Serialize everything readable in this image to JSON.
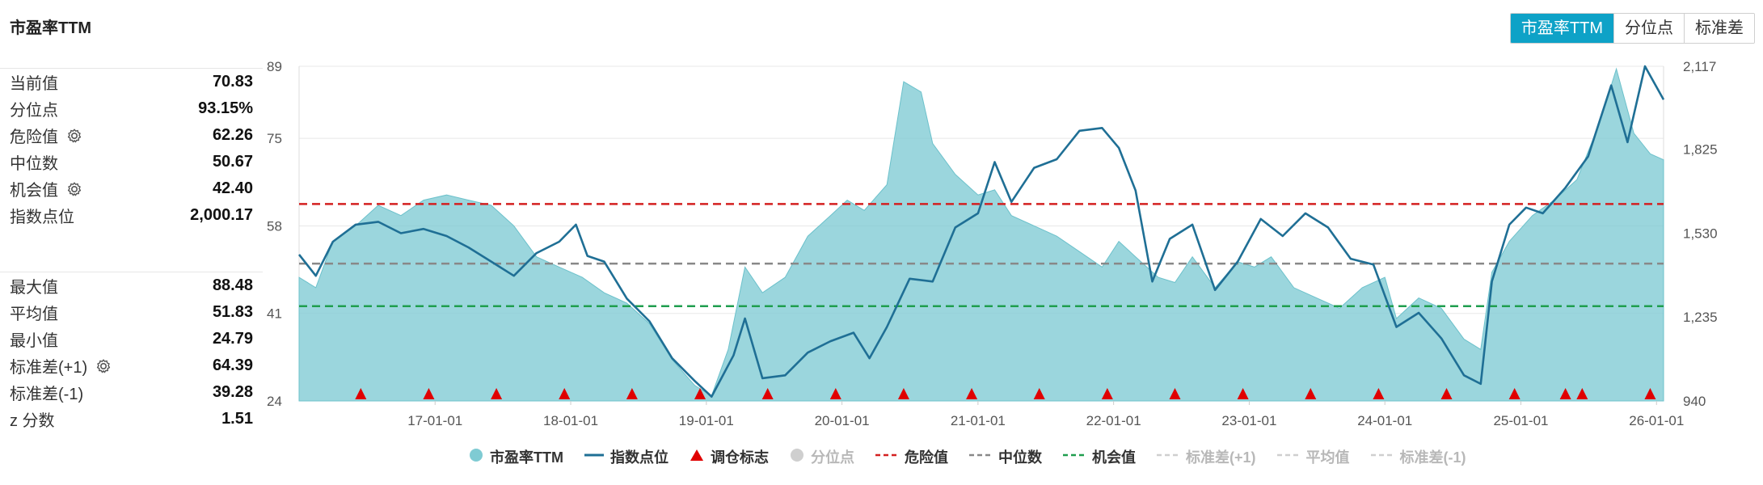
{
  "title": "市盈率TTM",
  "tabs": [
    {
      "label": "市盈率TTM",
      "active": true
    },
    {
      "label": "分位点",
      "active": false
    },
    {
      "label": "标准差",
      "active": false
    }
  ],
  "stats_current": [
    {
      "label": "当前值",
      "value": "70.83",
      "gear": false
    },
    {
      "label": "分位点",
      "value": "93.15%",
      "gear": false
    },
    {
      "label": "危险值",
      "value": "62.26",
      "gear": true
    },
    {
      "label": "中位数",
      "value": "50.67",
      "gear": false
    },
    {
      "label": "机会值",
      "value": "42.40",
      "gear": true
    },
    {
      "label": "指数点位",
      "value": "2,000.17",
      "gear": false
    }
  ],
  "stats_summary": [
    {
      "label": "最大值",
      "value": "88.48",
      "gear": false
    },
    {
      "label": "平均值",
      "value": "51.83",
      "gear": false
    },
    {
      "label": "最小值",
      "value": "24.79",
      "gear": false
    },
    {
      "label": "标准差(+1)",
      "value": "64.39",
      "gear": true
    },
    {
      "label": "标准差(-1)",
      "value": "39.28",
      "gear": false
    },
    {
      "label": "z 分数",
      "value": "1.51",
      "gear": false
    }
  ],
  "legend": [
    {
      "label": "市盈率TTM",
      "kind": "dot",
      "color": "#7fcbd3",
      "muted": false
    },
    {
      "label": "指数点位",
      "kind": "line",
      "color": "#1f6f95",
      "muted": false
    },
    {
      "label": "调仓标志",
      "kind": "triangle",
      "color": "#e00000",
      "muted": false
    },
    {
      "label": "分位点",
      "kind": "dot",
      "color": "#cfcfcf",
      "muted": true
    },
    {
      "label": "危险值",
      "kind": "dash",
      "color": "#d42020",
      "muted": false
    },
    {
      "label": "中位数",
      "kind": "dash",
      "color": "#888888",
      "muted": false
    },
    {
      "label": "机会值",
      "kind": "dash",
      "color": "#1f9e4e",
      "muted": false
    },
    {
      "label": "标准差(+1)",
      "kind": "dash",
      "color": "#cfcfcf",
      "muted": true
    },
    {
      "label": "平均值",
      "kind": "dash",
      "color": "#cfcfcf",
      "muted": true
    },
    {
      "label": "标准差(-1)",
      "kind": "dash",
      "color": "#cfcfcf",
      "muted": true
    }
  ],
  "chart_data": {
    "type": "area",
    "x_range": [
      "2016-01-01",
      "2026-01-20"
    ],
    "x_ticks": [
      {
        "date": "2017-01-01",
        "label": "17-01-01"
      },
      {
        "date": "2018-01-01",
        "label": "18-01-01"
      },
      {
        "date": "2019-01-01",
        "label": "19-01-01"
      },
      {
        "date": "2020-01-01",
        "label": "20-01-01"
      },
      {
        "date": "2021-01-01",
        "label": "21-01-01"
      },
      {
        "date": "2022-01-01",
        "label": "22-01-01"
      },
      {
        "date": "2023-01-01",
        "label": "23-01-01"
      },
      {
        "date": "2024-01-01",
        "label": "24-01-01"
      },
      {
        "date": "2025-01-01",
        "label": "25-01-01"
      },
      {
        "date": "2026-01-01",
        "label": "26-01-01"
      }
    ],
    "y_left": {
      "min": 24,
      "max": 89,
      "ticks": [
        24,
        41,
        58,
        75,
        89
      ],
      "tick_labels": [
        "24",
        "41",
        "58",
        "75",
        "89"
      ]
    },
    "y_right": {
      "min": 940,
      "max": 2117,
      "ticks": [
        940,
        1235,
        1530,
        1825,
        2117
      ],
      "tick_labels": [
        "940",
        "1,235",
        "1,530",
        "1,825",
        "2,117"
      ]
    },
    "reference_lines": [
      {
        "name": "危险值",
        "value": 62.26,
        "color": "#d42020"
      },
      {
        "name": "中位数",
        "value": 50.67,
        "color": "#888888"
      },
      {
        "name": "机会值",
        "value": 42.4,
        "color": "#1f9e4e"
      }
    ],
    "series": [
      {
        "name": "市盈率TTM",
        "axis": "left",
        "style": "area",
        "color": "#7fcbd3",
        "points": [
          [
            "2016-01-01",
            48
          ],
          [
            "2016-02-15",
            46
          ],
          [
            "2016-04-01",
            55
          ],
          [
            "2016-06-01",
            58
          ],
          [
            "2016-08-01",
            62
          ],
          [
            "2016-10-01",
            60
          ],
          [
            "2016-12-01",
            63
          ],
          [
            "2017-02-01",
            64
          ],
          [
            "2017-04-01",
            63
          ],
          [
            "2017-06-01",
            62
          ],
          [
            "2017-08-01",
            58
          ],
          [
            "2017-10-01",
            52
          ],
          [
            "2017-12-01",
            50
          ],
          [
            "2018-02-01",
            48
          ],
          [
            "2018-04-01",
            45
          ],
          [
            "2018-06-01",
            43
          ],
          [
            "2018-08-01",
            39
          ],
          [
            "2018-10-01",
            32
          ],
          [
            "2018-12-01",
            27
          ],
          [
            "2019-01-15",
            25
          ],
          [
            "2019-03-01",
            34
          ],
          [
            "2019-04-15",
            50
          ],
          [
            "2019-06-01",
            45
          ],
          [
            "2019-08-01",
            48
          ],
          [
            "2019-10-01",
            56
          ],
          [
            "2019-12-01",
            60
          ],
          [
            "2020-01-15",
            63
          ],
          [
            "2020-03-01",
            61
          ],
          [
            "2020-05-01",
            66
          ],
          [
            "2020-06-15",
            86
          ],
          [
            "2020-08-01",
            84
          ],
          [
            "2020-09-01",
            74
          ],
          [
            "2020-11-01",
            68
          ],
          [
            "2021-01-01",
            64
          ],
          [
            "2021-02-15",
            65
          ],
          [
            "2021-04-01",
            60
          ],
          [
            "2021-06-01",
            58
          ],
          [
            "2021-08-01",
            56
          ],
          [
            "2021-10-01",
            53
          ],
          [
            "2021-12-01",
            50
          ],
          [
            "2022-01-15",
            55
          ],
          [
            "2022-03-01",
            52
          ],
          [
            "2022-05-01",
            48
          ],
          [
            "2022-06-15",
            47
          ],
          [
            "2022-08-01",
            52
          ],
          [
            "2022-10-01",
            46
          ],
          [
            "2022-12-01",
            51
          ],
          [
            "2023-01-15",
            50
          ],
          [
            "2023-03-01",
            52
          ],
          [
            "2023-05-01",
            46
          ],
          [
            "2023-07-01",
            44
          ],
          [
            "2023-09-01",
            42
          ],
          [
            "2023-11-01",
            46
          ],
          [
            "2024-01-01",
            48
          ],
          [
            "2024-02-01",
            40
          ],
          [
            "2024-04-01",
            44
          ],
          [
            "2024-06-01",
            42
          ],
          [
            "2024-08-01",
            36
          ],
          [
            "2024-09-15",
            34
          ],
          [
            "2024-10-15",
            49
          ],
          [
            "2024-12-01",
            55
          ],
          [
            "2025-02-01",
            60
          ],
          [
            "2025-04-01",
            63
          ],
          [
            "2025-06-01",
            67
          ],
          [
            "2025-08-01",
            78
          ],
          [
            "2025-09-15",
            88.5
          ],
          [
            "2025-11-01",
            76
          ],
          [
            "2025-12-15",
            72
          ],
          [
            "2026-01-20",
            70.83
          ]
        ]
      },
      {
        "name": "指数点位",
        "axis": "right",
        "style": "line",
        "color": "#1f6f95",
        "points": [
          [
            "2016-01-01",
            1455
          ],
          [
            "2016-02-15",
            1380
          ],
          [
            "2016-04-01",
            1500
          ],
          [
            "2016-06-01",
            1560
          ],
          [
            "2016-08-01",
            1570
          ],
          [
            "2016-10-01",
            1530
          ],
          [
            "2016-12-01",
            1545
          ],
          [
            "2017-02-01",
            1520
          ],
          [
            "2017-04-01",
            1480
          ],
          [
            "2017-06-01",
            1430
          ],
          [
            "2017-08-01",
            1380
          ],
          [
            "2017-10-01",
            1460
          ],
          [
            "2017-12-01",
            1500
          ],
          [
            "2018-01-15",
            1560
          ],
          [
            "2018-02-15",
            1450
          ],
          [
            "2018-04-01",
            1430
          ],
          [
            "2018-06-01",
            1300
          ],
          [
            "2018-08-01",
            1220
          ],
          [
            "2018-10-01",
            1090
          ],
          [
            "2018-12-01",
            1010
          ],
          [
            "2019-01-15",
            955
          ],
          [
            "2019-03-15",
            1100
          ],
          [
            "2019-04-15",
            1230
          ],
          [
            "2019-06-01",
            1020
          ],
          [
            "2019-08-01",
            1030
          ],
          [
            "2019-10-01",
            1110
          ],
          [
            "2019-12-01",
            1150
          ],
          [
            "2020-02-01",
            1180
          ],
          [
            "2020-03-15",
            1090
          ],
          [
            "2020-05-01",
            1200
          ],
          [
            "2020-07-01",
            1370
          ],
          [
            "2020-09-01",
            1360
          ],
          [
            "2020-11-01",
            1550
          ],
          [
            "2021-01-01",
            1600
          ],
          [
            "2021-02-15",
            1780
          ],
          [
            "2021-04-01",
            1640
          ],
          [
            "2021-06-01",
            1760
          ],
          [
            "2021-08-01",
            1790
          ],
          [
            "2021-10-01",
            1890
          ],
          [
            "2021-12-01",
            1900
          ],
          [
            "2022-01-15",
            1830
          ],
          [
            "2022-03-01",
            1680
          ],
          [
            "2022-04-15",
            1360
          ],
          [
            "2022-06-01",
            1510
          ],
          [
            "2022-08-01",
            1560
          ],
          [
            "2022-10-01",
            1330
          ],
          [
            "2022-12-01",
            1430
          ],
          [
            "2023-02-01",
            1580
          ],
          [
            "2023-04-01",
            1520
          ],
          [
            "2023-06-01",
            1600
          ],
          [
            "2023-08-01",
            1550
          ],
          [
            "2023-10-01",
            1440
          ],
          [
            "2023-12-01",
            1420
          ],
          [
            "2024-02-01",
            1200
          ],
          [
            "2024-04-01",
            1250
          ],
          [
            "2024-06-01",
            1160
          ],
          [
            "2024-08-01",
            1030
          ],
          [
            "2024-09-15",
            1000
          ],
          [
            "2024-10-15",
            1360
          ],
          [
            "2024-12-01",
            1560
          ],
          [
            "2025-01-15",
            1620
          ],
          [
            "2025-03-01",
            1600
          ],
          [
            "2025-05-01",
            1690
          ],
          [
            "2025-07-01",
            1800
          ],
          [
            "2025-09-01",
            2050
          ],
          [
            "2025-10-15",
            1850
          ],
          [
            "2025-12-01",
            2117
          ],
          [
            "2026-01-20",
            2000
          ]
        ]
      }
    ],
    "rebalance_markers": [
      "2016-06-15",
      "2016-12-15",
      "2017-06-15",
      "2017-12-15",
      "2018-06-15",
      "2018-12-15",
      "2019-06-15",
      "2019-12-15",
      "2020-06-15",
      "2020-12-15",
      "2021-06-15",
      "2021-12-15",
      "2022-06-15",
      "2022-12-15",
      "2023-06-15",
      "2023-12-15",
      "2024-06-15",
      "2024-12-15",
      "2025-05-01",
      "2025-06-15",
      "2025-12-15"
    ]
  }
}
